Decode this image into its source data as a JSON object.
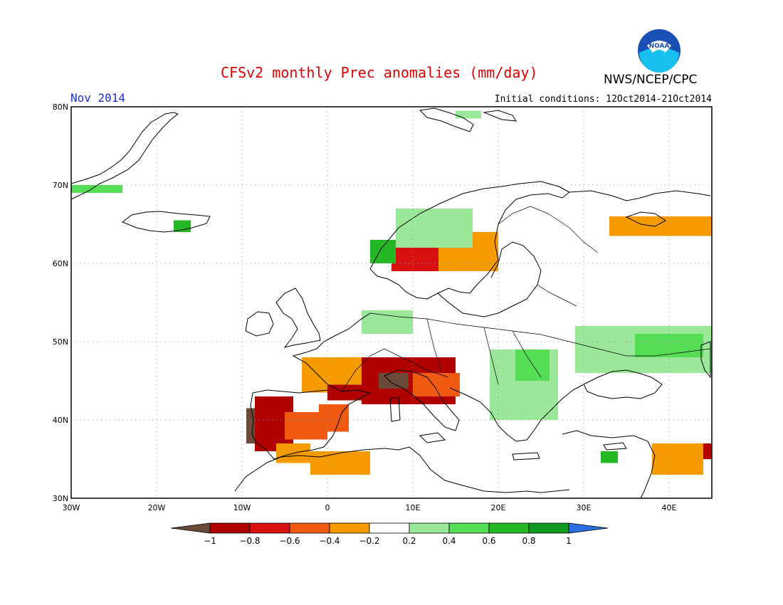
{
  "header": {
    "title": "CFSv2 monthly Prec anomalies (mm/day)",
    "period": "Nov 2014",
    "initial_conditions": "Initial conditions: 12Oct2014-21Oct2014",
    "agency": "NWS/NCEP/CPC",
    "logo_text": "NOAA"
  },
  "axes": {
    "lat_labels": [
      "80N",
      "70N",
      "60N",
      "50N",
      "40N",
      "30N"
    ],
    "lon_labels": [
      "30W",
      "20W",
      "10W",
      "0",
      "10E",
      "20E",
      "30E",
      "40E"
    ],
    "lat_values": [
      80,
      70,
      60,
      50,
      40,
      30
    ],
    "lon_values": [
      -30,
      -20,
      -10,
      0,
      10,
      20,
      30,
      40
    ],
    "lon_range": [
      -30,
      45
    ],
    "lat_range": [
      30,
      80
    ],
    "grid": "dotted"
  },
  "colorbar": {
    "tick_labels": [
      "-1",
      "-0.8",
      "-0.6",
      "-0.4",
      "-0.2",
      "0.2",
      "0.4",
      "0.6",
      "0.8",
      "1"
    ],
    "colors": [
      "#6b4a3a",
      "#b00000",
      "#d81010",
      "#f05a10",
      "#f59b00",
      "#ffffff",
      "#9be89b",
      "#55dd55",
      "#25b825",
      "#0f9a1f",
      "#2a6ee0"
    ]
  },
  "legend_classes": {
    "dry3": "#6b4a3a",
    "dry2": "#b00000",
    "dry1": "#d81010",
    "dryb": "#f05a10",
    "drya": "#f59b00",
    "wet1": "#9be89b",
    "wet2": "#55dd55",
    "wet3": "#25b825",
    "wet4": "#0f9a1f"
  },
  "anomaly_regions": [
    {
      "name": "portugal",
      "cls": "dry3",
      "lon": [
        -9.5,
        -6.5
      ],
      "lat": [
        37,
        41.5
      ]
    },
    {
      "name": "west-iberia",
      "cls": "dry2",
      "lon": [
        -8.5,
        -4
      ],
      "lat": [
        36,
        43
      ]
    },
    {
      "name": "central-spain",
      "cls": "dryb",
      "lon": [
        -5,
        0
      ],
      "lat": [
        37.5,
        41
      ]
    },
    {
      "name": "east-spain",
      "cls": "dryb",
      "lon": [
        -1,
        2.5
      ],
      "lat": [
        38.5,
        42
      ]
    },
    {
      "name": "spain-south",
      "cls": "drya",
      "lon": [
        -6,
        -2
      ],
      "lat": [
        34.5,
        37
      ]
    },
    {
      "name": "morocco-north",
      "cls": "drya",
      "lon": [
        -2,
        5
      ],
      "lat": [
        33,
        36
      ]
    },
    {
      "name": "france-south",
      "cls": "drya",
      "lon": [
        -3,
        8
      ],
      "lat": [
        43.5,
        48
      ]
    },
    {
      "name": "pyrenees",
      "cls": "dry2",
      "lon": [
        0,
        4
      ],
      "lat": [
        42.5,
        44.5
      ]
    },
    {
      "name": "alps-core",
      "cls": "dry2",
      "lon": [
        4,
        15
      ],
      "lat": [
        42,
        48
      ]
    },
    {
      "name": "alps-brown",
      "cls": "dry3",
      "lon": [
        6,
        9.5
      ],
      "lat": [
        44,
        46
      ]
    },
    {
      "name": "n-italy",
      "cls": "dryb",
      "lon": [
        10,
        15.5
      ],
      "lat": [
        43,
        46
      ]
    },
    {
      "name": "sw-norway",
      "cls": "dry1",
      "lon": [
        7.5,
        13
      ],
      "lat": [
        59,
        62
      ]
    },
    {
      "name": "s-sweden",
      "cls": "drya",
      "lon": [
        13,
        20
      ],
      "lat": [
        59,
        64
      ]
    },
    {
      "name": "russia-north",
      "cls": "drya",
      "lon": [
        33,
        45
      ],
      "lat": [
        63.5,
        66
      ]
    },
    {
      "name": "turkey-se",
      "cls": "dry2",
      "lon": [
        40,
        45
      ],
      "lat": [
        35,
        37
      ]
    },
    {
      "name": "iraq",
      "cls": "drya",
      "lon": [
        38,
        44
      ],
      "lat": [
        33,
        37
      ]
    },
    {
      "name": "norway-coast",
      "cls": "wet3",
      "lon": [
        5,
        8
      ],
      "lat": [
        60,
        63
      ]
    },
    {
      "name": "norway-wet",
      "cls": "wet1",
      "lon": [
        8,
        17
      ],
      "lat": [
        62,
        67
      ]
    },
    {
      "name": "iceland-wet",
      "cls": "wet3",
      "lon": [
        -18,
        -16
      ],
      "lat": [
        64,
        65.5
      ]
    },
    {
      "name": "greenland-wet",
      "cls": "wet2",
      "lon": [
        -30,
        -24
      ],
      "lat": [
        69,
        70
      ]
    },
    {
      "name": "balkans",
      "cls": "wet1",
      "lon": [
        19,
        27
      ],
      "lat": [
        40,
        49
      ]
    },
    {
      "name": "hungary-wet",
      "cls": "wet2",
      "lon": [
        22,
        26
      ],
      "lat": [
        45,
        49
      ]
    },
    {
      "name": "ukraine-russia",
      "cls": "wet1",
      "lon": [
        29,
        45
      ],
      "lat": [
        46,
        52
      ]
    },
    {
      "name": "russia-wet",
      "cls": "wet2",
      "lon": [
        36,
        44
      ],
      "lat": [
        48,
        51
      ]
    },
    {
      "name": "benelux",
      "cls": "wet1",
      "lon": [
        4,
        10
      ],
      "lat": [
        51,
        54
      ]
    },
    {
      "name": "cyprus",
      "cls": "wet3",
      "lon": [
        32,
        34
      ],
      "lat": [
        34.5,
        36
      ]
    },
    {
      "name": "svalbard",
      "cls": "wet1",
      "lon": [
        15,
        18
      ],
      "lat": [
        78.5,
        79.5
      ]
    }
  ]
}
